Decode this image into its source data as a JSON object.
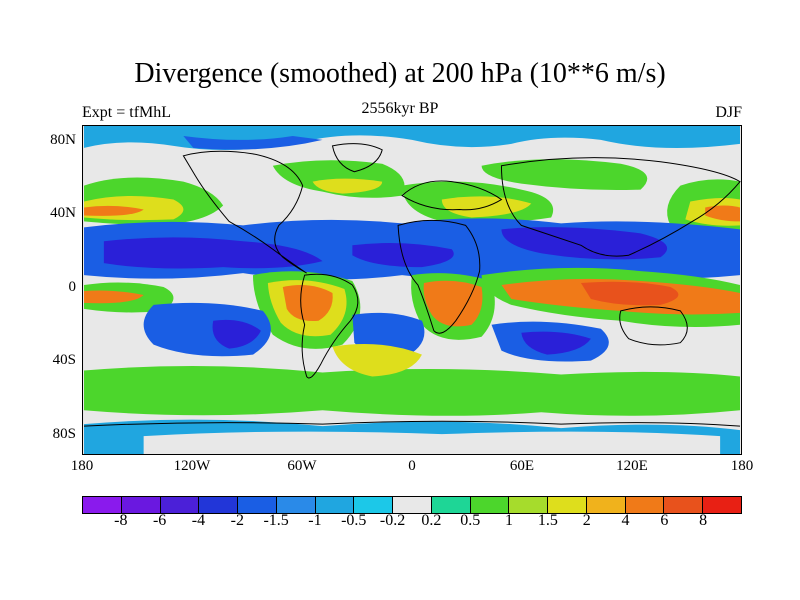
{
  "title": "Divergence (smoothed) at 200 hPa (10**6 m/s)",
  "subtitle_left": "Expt = tfMhL",
  "subtitle_center": "2556kyr BP",
  "subtitle_right": "DJF",
  "lat_labels": [
    "80N",
    "40N",
    "0",
    "40S",
    "80S"
  ],
  "lon_labels": [
    "180",
    "120W",
    "60W",
    "0",
    "60E",
    "120E",
    "180"
  ],
  "colorbar": {
    "labels": [
      "-8",
      "-6",
      "-4",
      "-2",
      "-1.5",
      "-1",
      "-0.5",
      "-0.2",
      "0.2",
      "0.5",
      "1",
      "1.5",
      "2",
      "4",
      "6",
      "8"
    ],
    "colors": [
      "#8a1aed",
      "#6a18e0",
      "#4b20d8",
      "#2236d8",
      "#1a5ee4",
      "#2a8ae8",
      "#20a6e0",
      "#1cc8e8",
      "#e8e8e8",
      "#1ed696",
      "#4cd62c",
      "#a6dc2c",
      "#dede1c",
      "#f0b21c",
      "#f07a18",
      "#e8521c",
      "#e82014"
    ]
  },
  "map_colors": {
    "neutral": "#e8e8e8",
    "strong_convergence": "#2a20d8",
    "convergence": "#1a5ee4",
    "weak_convergence": "#20a6e0",
    "weak_divergence": "#4cd62c",
    "divergence": "#dede1c",
    "strong_divergence": "#f07a18",
    "very_strong_divergence": "#e8521c",
    "coastline": "#000000"
  }
}
